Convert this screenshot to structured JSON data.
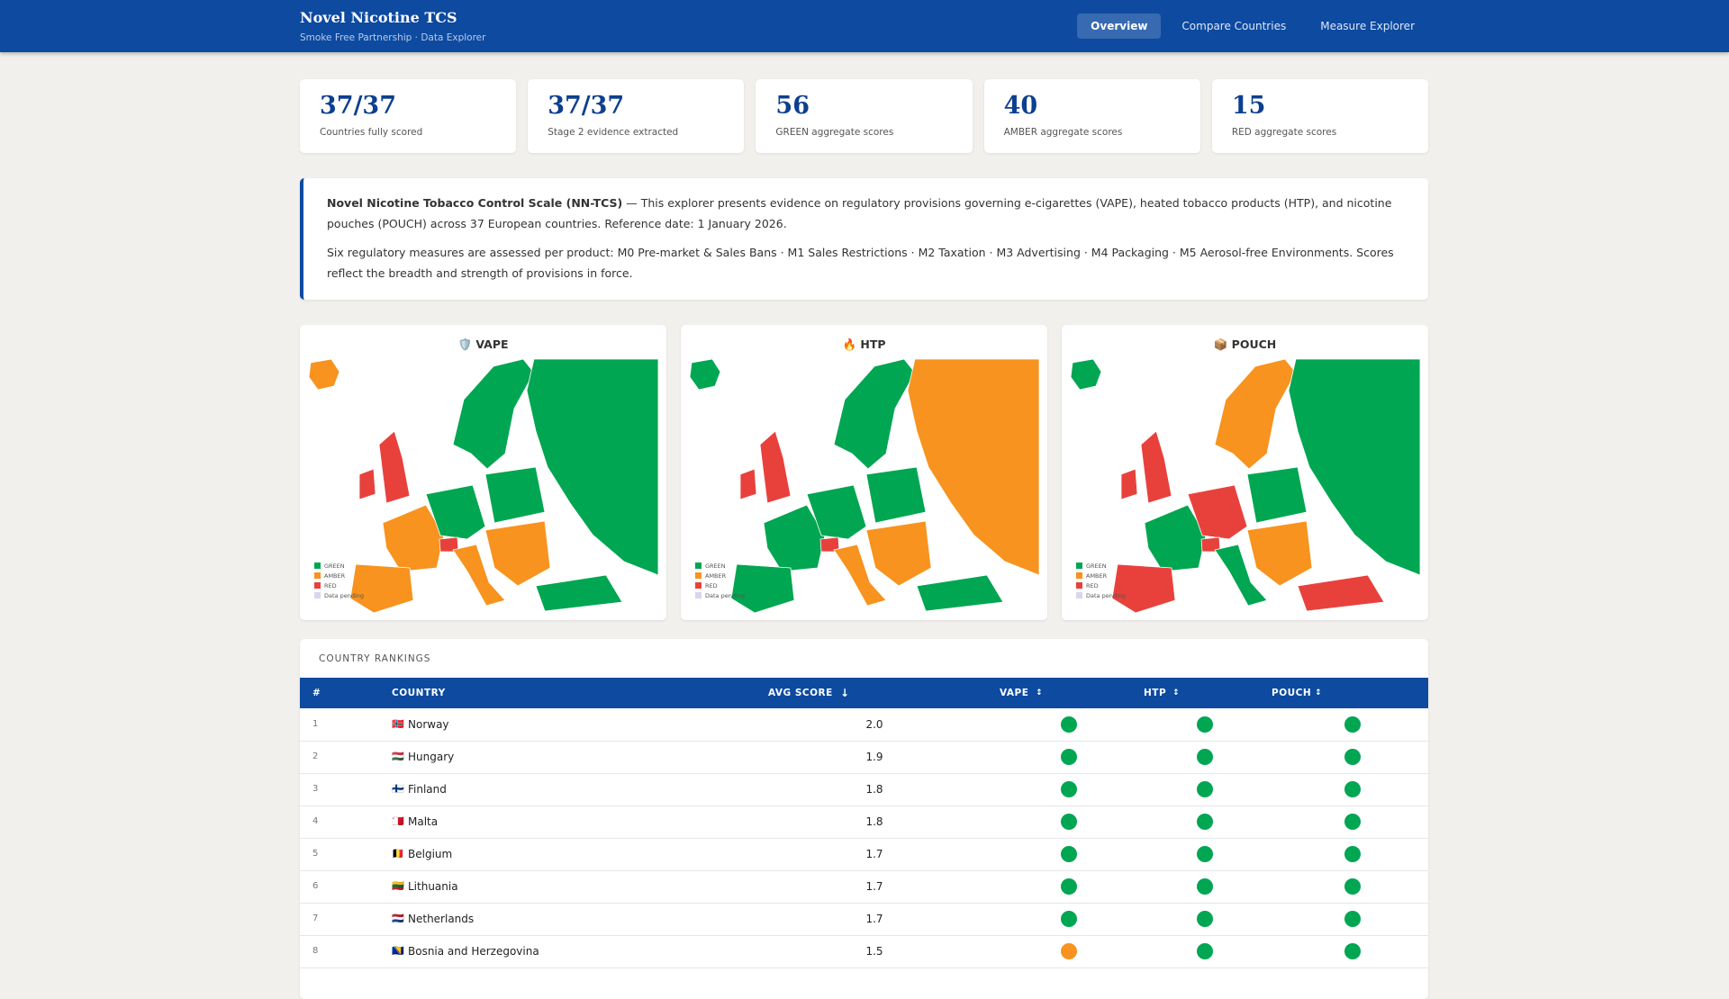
{
  "header": {
    "title": "Novel Nicotine TCS",
    "subtitle": "Smoke Free Partnership · Data Explorer",
    "nav": [
      "Overview",
      "Compare Countries",
      "Measure Explorer"
    ]
  },
  "stats": [
    {
      "value": "37/37",
      "label": "Countries fully scored"
    },
    {
      "value": "37/37",
      "label": "Stage 2 evidence extracted"
    },
    {
      "value": "56",
      "label": "GREEN aggregate scores"
    },
    {
      "value": "40",
      "label": "AMBER aggregate scores"
    },
    {
      "value": "15",
      "label": "RED aggregate scores"
    }
  ],
  "intro": {
    "bold": "Novel Nicotine Tobacco Control Scale (NN-TCS)",
    "text": " — This explorer presents evidence on regulatory provisions governing e-cigarettes (VAPE), heated tobacco products (HTP), and nicotine pouches (POUCH) across 37 European countries. Reference date: 1 January 2026.",
    "text2": "Six regulatory measures are assessed per product: M0 Pre-market & Sales Bans · M1 Sales Restrictions · M2 Taxation · M3 Advertising · M4 Packaging · M5 Aerosol-free Environments. Scores reflect the breadth and strength of provisions in force."
  },
  "legend": [
    {
      "label": "GREEN",
      "color": "#00a651"
    },
    {
      "label": "AMBER",
      "color": "#f7931e"
    },
    {
      "label": "RED",
      "color": "#e8413c"
    },
    {
      "label": "Data pending",
      "color": "#d9d5ec"
    }
  ],
  "maps": [
    {
      "title": "🛡️ VAPE",
      "region_colors": [
        "#f7931e",
        "#00a651",
        "#00a651",
        "#e8413c",
        "#e8413c",
        "#f7931e",
        "#f7931e",
        "#00a651",
        "#e8413c",
        "#f7931e",
        "#00a651",
        "#f7931e",
        "#00a651"
      ]
    },
    {
      "title": "🔥 HTP",
      "region_colors": [
        "#00a651",
        "#00a651",
        "#f7931e",
        "#e8413c",
        "#e8413c",
        "#00a651",
        "#00a651",
        "#00a651",
        "#e8413c",
        "#f7931e",
        "#00a651",
        "#f7931e",
        "#00a651"
      ]
    },
    {
      "title": "📦 POUCH",
      "region_colors": [
        "#00a651",
        "#f7931e",
        "#00a651",
        "#e8413c",
        "#e8413c",
        "#00a651",
        "#e8413c",
        "#e8413c",
        "#e8413c",
        "#00a651",
        "#00a651",
        "#f7931e",
        "#e8413c"
      ]
    }
  ],
  "rankings": {
    "title": "COUNTRY RANKINGS",
    "columns": [
      {
        "label": "#"
      },
      {
        "label": "COUNTRY"
      },
      {
        "label": "AVG SCORE",
        "sort": "↓"
      },
      {
        "label": "VAPE",
        "sort": "↕"
      },
      {
        "label": "HTP",
        "sort": "↕"
      },
      {
        "label": "POUCH",
        "sort": "↕"
      }
    ],
    "rows": [
      {
        "rank": 1,
        "flag": "🇳🇴",
        "country": "Norway",
        "avg": "2.0",
        "status": [
          "#00a651",
          "#00a651",
          "#00a651"
        ]
      },
      {
        "rank": 2,
        "flag": "🇭🇺",
        "country": "Hungary",
        "avg": "1.9",
        "status": [
          "#00a651",
          "#00a651",
          "#00a651"
        ]
      },
      {
        "rank": 3,
        "flag": "🇫🇮",
        "country": "Finland",
        "avg": "1.8",
        "status": [
          "#00a651",
          "#00a651",
          "#00a651"
        ]
      },
      {
        "rank": 4,
        "flag": "🇲🇹",
        "country": "Malta",
        "avg": "1.8",
        "status": [
          "#00a651",
          "#00a651",
          "#00a651"
        ]
      },
      {
        "rank": 5,
        "flag": "🇧🇪",
        "country": "Belgium",
        "avg": "1.7",
        "status": [
          "#00a651",
          "#00a651",
          "#00a651"
        ]
      },
      {
        "rank": 6,
        "flag": "🇱🇹",
        "country": "Lithuania",
        "avg": "1.7",
        "status": [
          "#00a651",
          "#00a651",
          "#00a651"
        ]
      },
      {
        "rank": 7,
        "flag": "🇳🇱",
        "country": "Netherlands",
        "avg": "1.7",
        "status": [
          "#00a651",
          "#00a651",
          "#00a651"
        ]
      },
      {
        "rank": 8,
        "flag": "🇧🇦",
        "country": "Bosnia and Herzegovina",
        "avg": "1.5",
        "status": [
          "#f7931e",
          "#00a651",
          "#00a651"
        ]
      }
    ]
  }
}
